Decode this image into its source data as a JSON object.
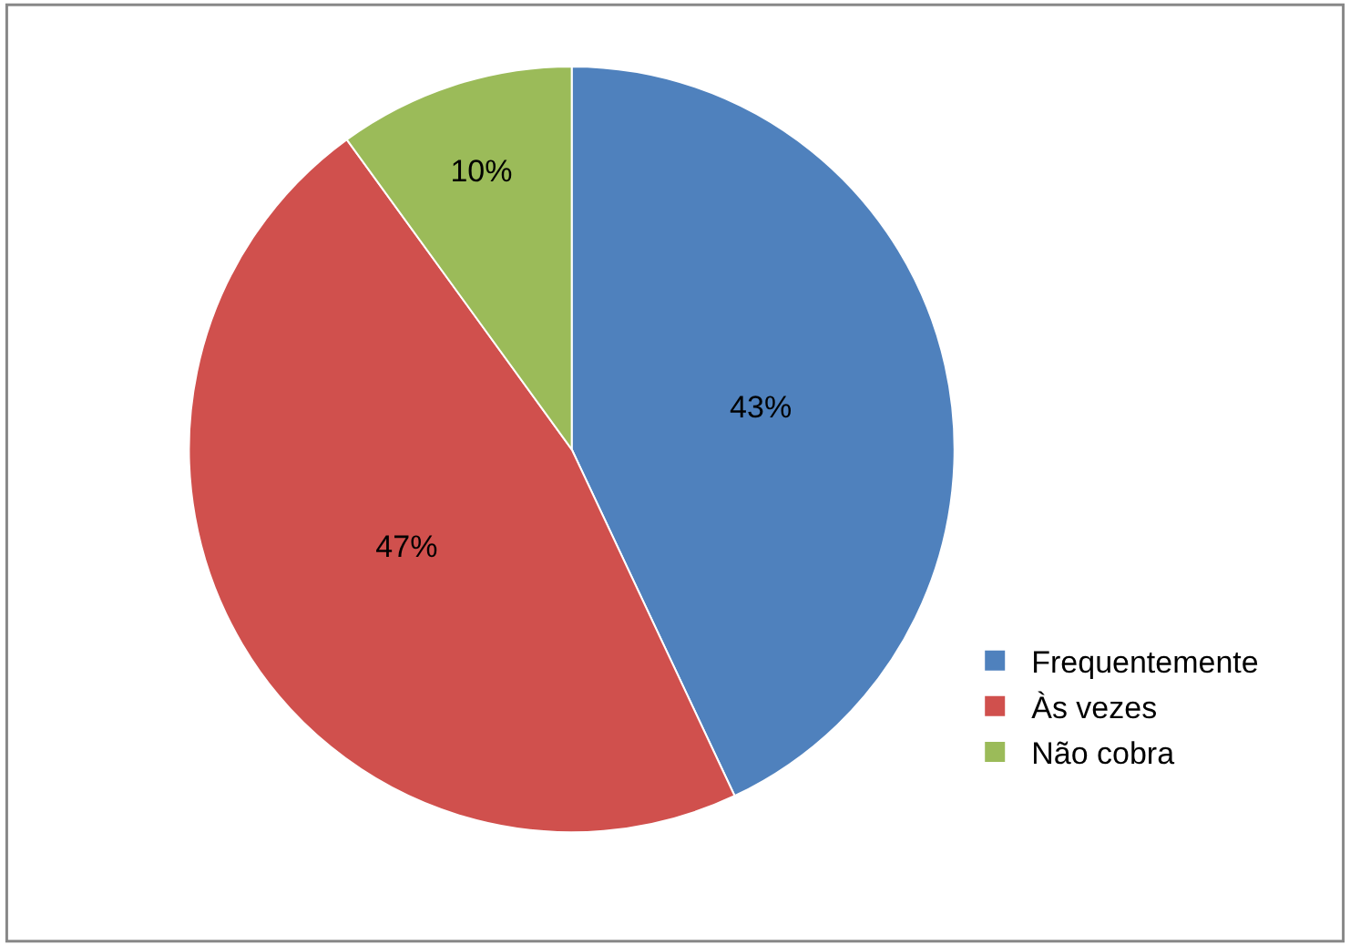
{
  "chart_data": {
    "type": "pie",
    "categories": [
      "Frequentemente",
      "Às vezes",
      "Não cobra"
    ],
    "values": [
      43,
      47,
      10
    ],
    "colors": [
      "#4f81bd",
      "#d0504d",
      "#9bbb59"
    ],
    "value_labels": [
      "43%",
      "47%",
      "10%"
    ],
    "legend": "bottom right"
  }
}
